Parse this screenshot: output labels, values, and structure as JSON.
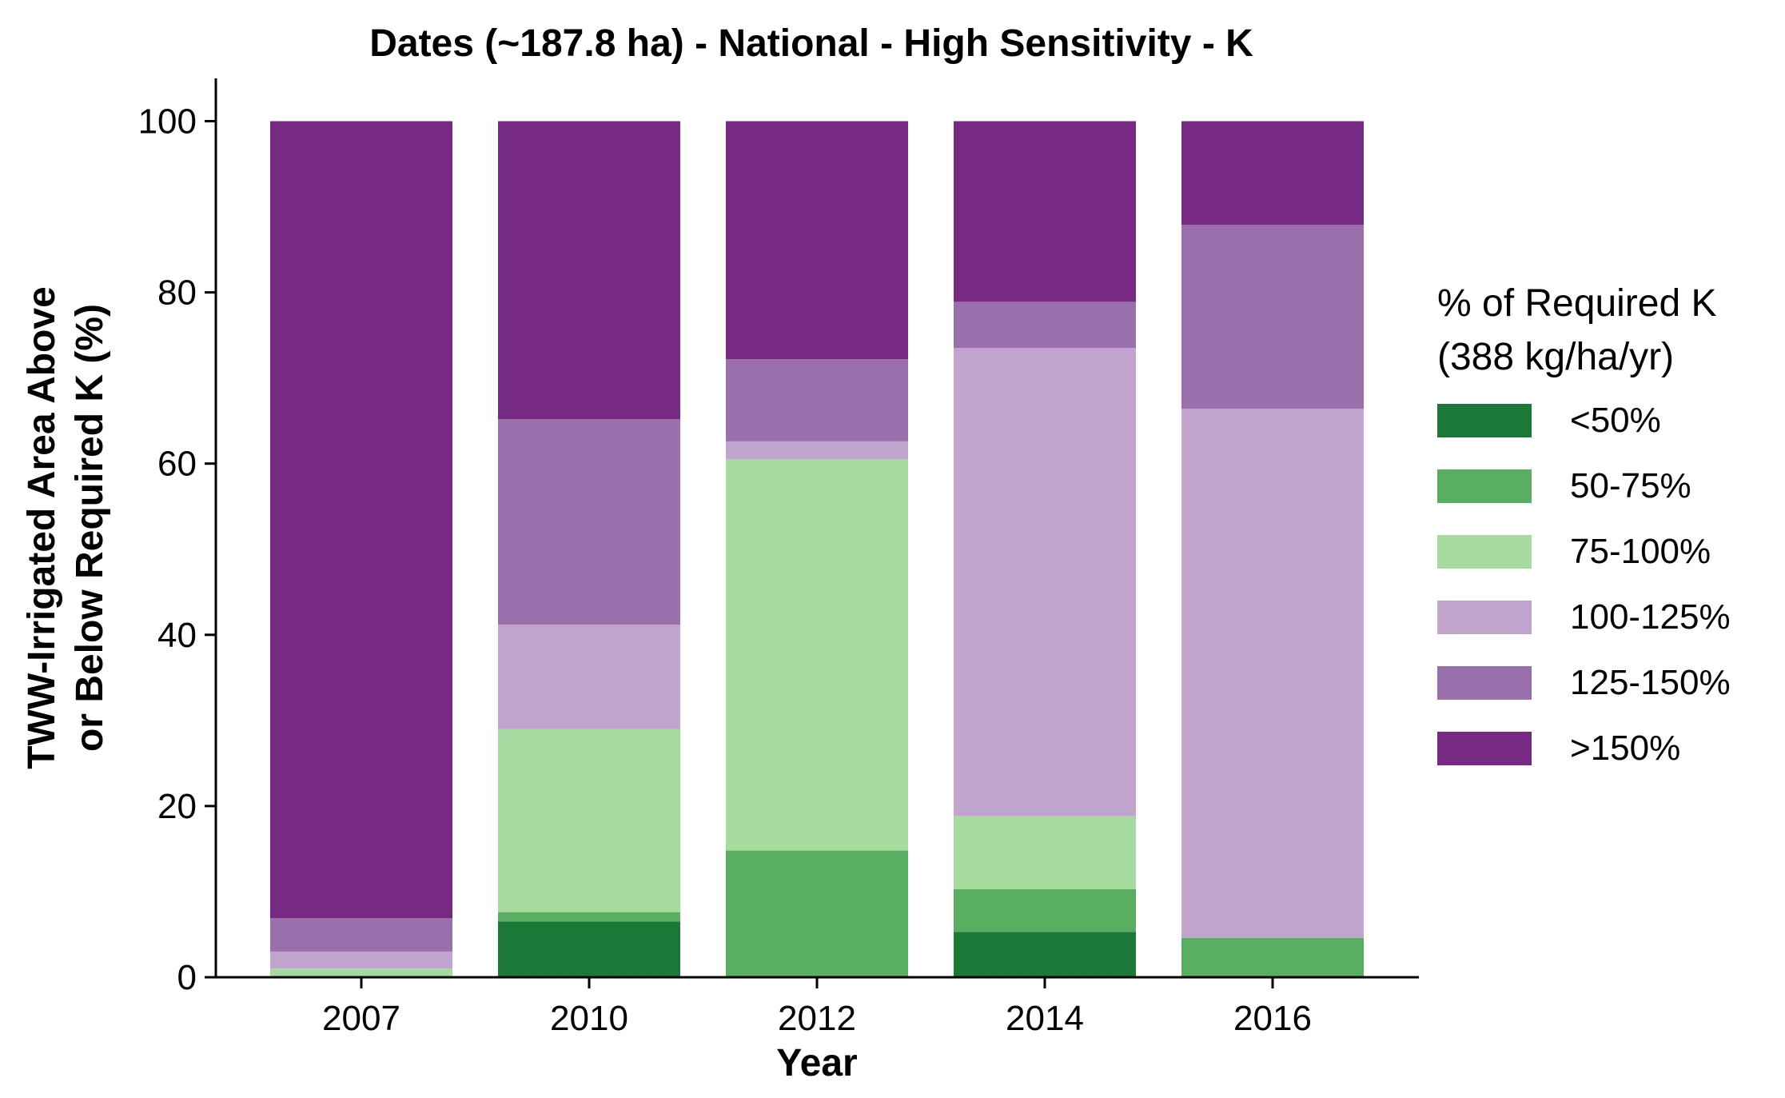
{
  "chart_data": {
    "type": "bar",
    "stacked": true,
    "title": "Dates (~187.8 ha) - National - High Sensitivity - K",
    "xlabel": "Year",
    "ylabel_lines": [
      "TWW-Irrigated Area Above",
      "or Below Required K (%)"
    ],
    "categories": [
      "2007",
      "2010",
      "2012",
      "2014",
      "2016"
    ],
    "ylim": [
      0,
      105
    ],
    "yticks": [
      0,
      20,
      40,
      60,
      80,
      100
    ],
    "grid": false,
    "legend": {
      "position": "right",
      "title_lines": [
        "% of Required K",
        "(388 kg/ha/yr)"
      ]
    },
    "series": [
      {
        "name": "<50%",
        "color": "#1b7837",
        "values": [
          0.0,
          6.5,
          0.0,
          5.3,
          0.0
        ]
      },
      {
        "name": "50-75%",
        "color": "#5aae61",
        "values": [
          0.0,
          1.1,
          14.8,
          5.0,
          4.6
        ]
      },
      {
        "name": "75-100%",
        "color": "#a6dba0",
        "values": [
          1.0,
          21.4,
          45.7,
          8.5,
          0.0
        ]
      },
      {
        "name": "100-125%",
        "color": "#c2a5cf",
        "values": [
          2.0,
          12.2,
          2.1,
          54.7,
          61.8
        ]
      },
      {
        "name": "125-150%",
        "color": "#9970ab",
        "values": [
          3.9,
          24.0,
          9.6,
          5.4,
          21.5
        ]
      },
      {
        "name": ">150%",
        "color": "#762a83",
        "values": [
          93.1,
          34.8,
          27.8,
          21.1,
          12.1
        ]
      }
    ]
  }
}
